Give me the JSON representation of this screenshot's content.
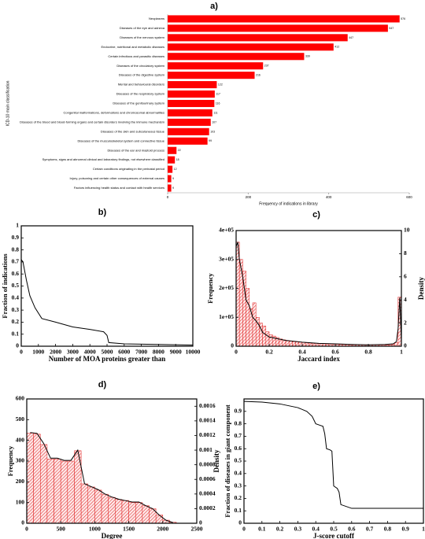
{
  "chart_data": [
    {
      "type": "hbar",
      "title": "a)",
      "xlabel": "Frequency of indications in library",
      "ylabel": "ICD-10 main classification",
      "color": "#ff0000",
      "categories": [
        "Neoplasms",
        "Diseases of the eye and adnexa",
        "Diseases of the nervous system",
        "Endocrine, nutritional and metabolic diseases",
        "Certain infectious and parasitic diseases",
        "Diseases of the circulatory system",
        "Diseases of the digestive system",
        "Mental and behavioural disorders",
        "Diseases of the respiratory system",
        "Diseases of the genitourinary system",
        "Congenital malformations, deformations and chromosomal abnormalities",
        "Diseases of the blood and blood-forming organs and certain disorders involving the immune mechanism",
        "Diseases of the skin and subcutaneous tissue",
        "Diseases of the musculoskeletal system and connective tissue",
        "Diseases of the ear and mastoid process",
        "Symptoms, signs and abnormal clinical and laboratory findings, not elsewhere classified",
        "Certain conditions originating in the perinatal period",
        "Injury, poisoning and certain other consequences of external causes",
        "Factors influencing health status and contact with health services"
      ],
      "values": [
        576,
        547,
        447,
        412,
        339,
        237,
        216,
        122,
        117,
        116,
        111,
        107,
        103,
        99,
        22,
        18,
        12,
        9,
        9
      ],
      "xlim": [
        0,
        600
      ],
      "xticks": [
        0,
        200,
        400,
        600
      ]
    },
    {
      "type": "line",
      "title": "b)",
      "xlabel": "Number of MOA proteins greater than",
      "ylabel": "Fraction of indications",
      "color": "#000000",
      "x": [
        0,
        100,
        300,
        500,
        800,
        1200,
        2000,
        3000,
        4000,
        4800,
        5000,
        5100,
        6000,
        10000
      ],
      "values": [
        0.72,
        0.7,
        0.55,
        0.42,
        0.32,
        0.23,
        0.2,
        0.16,
        0.14,
        0.12,
        0.09,
        0.03,
        0.02,
        0.01
      ],
      "xlim": [
        0,
        10000
      ],
      "xticks": [
        0,
        1000,
        2000,
        3000,
        4000,
        5000,
        6000,
        7000,
        8000,
        9000,
        10000
      ],
      "ylim": [
        0,
        1
      ],
      "yticks": [
        0,
        0.1,
        0.2,
        0.3,
        0.4,
        0.5,
        0.6,
        0.7,
        0.8,
        0.9,
        1
      ]
    },
    {
      "type": "histogram",
      "title": "c)",
      "xlabel": "Jaccard index",
      "ylabel": "Frequency",
      "y2label": "Density",
      "color": "#e02020",
      "bins": [
        0,
        0.02,
        0.04,
        0.06,
        0.08,
        0.1,
        0.12,
        0.14,
        0.16,
        0.18,
        0.2,
        0.22,
        0.24,
        0.26,
        0.28,
        0.3,
        0.32,
        0.34,
        0.36,
        0.38,
        0.4,
        0.42,
        0.44,
        0.46,
        0.48,
        0.5,
        0.52,
        0.54,
        0.56,
        0.58,
        0.6,
        0.62,
        0.64,
        0.66,
        0.68,
        0.7,
        0.72,
        0.74,
        0.76,
        0.78,
        0.8,
        0.82,
        0.84,
        0.86,
        0.88,
        0.9,
        0.92,
        0.94,
        0.96,
        0.98,
        1
      ],
      "counts": [
        360000,
        300000,
        260000,
        200000,
        130000,
        150000,
        100000,
        80000,
        70000,
        50000,
        40000,
        35000,
        30000,
        25000,
        22000,
        20000,
        18000,
        16000,
        15000,
        14000,
        13000,
        12000,
        11000,
        10000,
        10000,
        9000,
        9000,
        8000,
        8000,
        7000,
        7000,
        6000,
        6000,
        6000,
        5000,
        5000,
        5000,
        5000,
        5000,
        5000,
        5000,
        5000,
        5000,
        5000,
        5000,
        5000,
        5000,
        6000,
        12000,
        170000
      ],
      "series": [
        {
          "axis": "y2",
          "color": "#000000",
          "x": [
            0,
            0.01,
            0.02,
            0.04,
            0.06,
            0.08,
            0.1,
            0.12,
            0.14,
            0.16,
            0.2,
            0.3,
            0.4,
            0.5,
            0.6,
            0.7,
            0.8,
            0.9,
            0.95,
            0.97,
            0.98,
            0.99,
            1
          ],
          "values": [
            8.6,
            9,
            7.5,
            6,
            4,
            3.5,
            2.5,
            2.2,
            1.8,
            1.2,
            0.8,
            0.5,
            0.35,
            0.25,
            0.2,
            0.15,
            0.12,
            0.15,
            0.2,
            0.4,
            1.5,
            4.2,
            0.5
          ]
        }
      ],
      "xlim": [
        0,
        1
      ],
      "xticks": [
        0,
        0.2,
        0.4,
        0.6,
        0.8,
        1
      ],
      "ylim": [
        0,
        400000
      ],
      "yticks": [
        0,
        {
          "value": 100000,
          "label": "1e+05"
        },
        {
          "value": 200000,
          "label": "2e+05"
        },
        {
          "value": 300000,
          "label": "3e+05"
        },
        {
          "value": 400000,
          "label": "4e+05"
        }
      ],
      "y2lim": [
        0,
        10
      ],
      "y2ticks": [
        0,
        2,
        4,
        6,
        8,
        10
      ]
    },
    {
      "type": "histogram",
      "title": "d)",
      "xlabel": "Degree",
      "ylabel": "Frequency",
      "y2label": "Density",
      "color": "#e02020",
      "bins": [
        0,
        100,
        200,
        300,
        400,
        500,
        600,
        700,
        800,
        900,
        1000,
        1100,
        1200,
        1300,
        1400,
        1500,
        1600,
        1700,
        1800,
        1900,
        2000,
        2100,
        2200
      ],
      "counts": [
        435,
        430,
        380,
        310,
        310,
        300,
        300,
        350,
        190,
        175,
        160,
        140,
        125,
        115,
        110,
        100,
        100,
        85,
        70,
        40,
        15,
        5
      ],
      "series": [
        {
          "axis": "y2",
          "color": "#000000",
          "x": [
            50,
            150,
            250,
            350,
            450,
            550,
            650,
            750,
            850,
            950,
            1050,
            1150,
            1250,
            1350,
            1450,
            1550,
            1650,
            1750,
            1850,
            1950,
            2050,
            2150
          ],
          "values": [
            0.00124,
            0.00123,
            0.00109,
            0.00089,
            0.00089,
            0.00086,
            0.00086,
            0.001,
            0.00054,
            0.0005,
            0.00046,
            0.0004,
            0.00036,
            0.00033,
            0.00031,
            0.00029,
            0.00029,
            0.00024,
            0.0002,
            0.00011,
            4e-05,
            1e-05
          ]
        }
      ],
      "xlim": [
        0,
        2500
      ],
      "xticks": [
        0,
        500,
        1000,
        1500,
        2000,
        2500
      ],
      "ylim": [
        0,
        600
      ],
      "yticks": [
        0,
        100,
        200,
        300,
        400,
        500,
        600
      ],
      "y2lim": [
        0,
        0.0017
      ],
      "y2ticks": [
        0,
        0.0002,
        0.0004,
        0.0006,
        0.0008,
        0.001,
        0.0012,
        0.0014,
        0.0016
      ]
    },
    {
      "type": "line",
      "title": "e)",
      "xlabel": "J-score cutoff",
      "ylabel": "Fraction of diseases in giant component",
      "color": "#000000",
      "x": [
        0,
        0.1,
        0.2,
        0.3,
        0.35,
        0.38,
        0.4,
        0.42,
        0.44,
        0.45,
        0.46,
        0.48,
        0.49,
        0.5,
        0.52,
        0.53,
        0.54,
        0.6,
        0.7,
        1
      ],
      "values": [
        0.98,
        0.975,
        0.96,
        0.93,
        0.9,
        0.86,
        0.8,
        0.79,
        0.78,
        0.72,
        0.6,
        0.59,
        0.58,
        0.3,
        0.28,
        0.25,
        0.15,
        0.12,
        0.12,
        0.12
      ],
      "xlim": [
        0,
        1
      ],
      "xticks": [
        0,
        0.1,
        0.2,
        0.3,
        0.4,
        0.5,
        0.6,
        0.7,
        0.8,
        0.9,
        1
      ],
      "ylim": [
        0,
        1
      ],
      "yticks": [
        0,
        0.1,
        0.2,
        0.3,
        0.4,
        0.5,
        0.6,
        0.7,
        0.8,
        0.9
      ]
    }
  ]
}
